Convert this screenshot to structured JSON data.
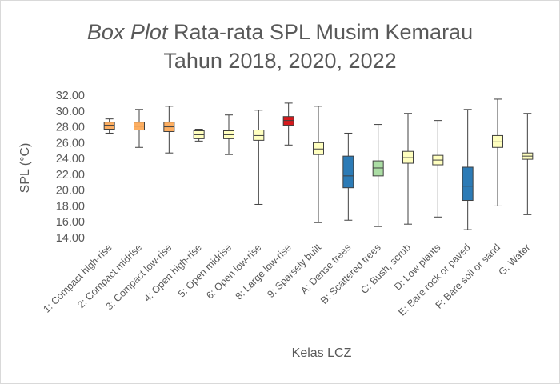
{
  "chart_data": {
    "type": "boxplot",
    "title_italic": "Box Plot",
    "title_rest": " Rata-rata SPL Musim Kemarau",
    "title_line2": "Tahun 2018, 2020, 2022",
    "xlabel": "Kelas LCZ",
    "ylabel": "SPL (°C)",
    "ylim": [
      14,
      32
    ],
    "ytick_step": 2,
    "ytick_labels": [
      "14.00",
      "16.00",
      "18.00",
      "20.00",
      "22.00",
      "24.00",
      "26.00",
      "28.00",
      "30.00",
      "32.00"
    ],
    "grid": false,
    "categories": [
      "1: Compact high-rise",
      "2: Compact midrise",
      "3: Compact low-rise",
      "4: Open high-rise",
      "5: Open midrise",
      "6: Open low-rise",
      "8: Large low-rise",
      "9: Sparsely built",
      "A: Dense trees",
      "B: Scattered trees",
      "C: Bush, scrub",
      "D: Low plants",
      "E: Bare rock or paved",
      "F: Bare soil or sand",
      "G: Water"
    ],
    "boxes": [
      {
        "min": 27.2,
        "q1": 27.7,
        "median": 28.2,
        "q3": 28.6,
        "max": 29.0,
        "color": "#fdae61"
      },
      {
        "min": 25.4,
        "q1": 27.6,
        "median": 28.1,
        "q3": 28.6,
        "max": 30.2,
        "color": "#fdae61"
      },
      {
        "min": 24.7,
        "q1": 27.4,
        "median": 28.0,
        "q3": 28.6,
        "max": 30.6,
        "color": "#fdae61"
      },
      {
        "min": 26.2,
        "q1": 26.5,
        "median": 27.0,
        "q3": 27.5,
        "max": 27.7,
        "color": "#ffffbf"
      },
      {
        "min": 24.5,
        "q1": 26.5,
        "median": 27.0,
        "q3": 27.5,
        "max": 29.5,
        "color": "#ffffbf"
      },
      {
        "min": 18.2,
        "q1": 26.3,
        "median": 26.9,
        "q3": 27.6,
        "max": 30.1,
        "color": "#ffffbf"
      },
      {
        "min": 25.7,
        "q1": 28.2,
        "median": 28.8,
        "q3": 29.3,
        "max": 31.0,
        "color": "#d7191c"
      },
      {
        "min": 15.9,
        "q1": 24.5,
        "median": 25.2,
        "q3": 26.0,
        "max": 30.6,
        "color": "#ffffbf"
      },
      {
        "min": 16.2,
        "q1": 20.3,
        "median": 21.8,
        "q3": 24.3,
        "max": 27.2,
        "color": "#2c7bb6"
      },
      {
        "min": 15.4,
        "q1": 21.8,
        "median": 22.8,
        "q3": 23.7,
        "max": 28.3,
        "color": "#abdda4"
      },
      {
        "min": 15.7,
        "q1": 23.4,
        "median": 24.1,
        "q3": 24.9,
        "max": 29.7,
        "color": "#ffffbf"
      },
      {
        "min": 16.6,
        "q1": 23.2,
        "median": 23.8,
        "q3": 24.4,
        "max": 28.8,
        "color": "#ffffbf"
      },
      {
        "min": 15.0,
        "q1": 18.7,
        "median": 20.5,
        "q3": 22.9,
        "max": 30.2,
        "color": "#2c7bb6"
      },
      {
        "min": 18.0,
        "q1": 25.4,
        "median": 26.1,
        "q3": 26.9,
        "max": 31.5,
        "color": "#ffffbf"
      },
      {
        "min": 16.9,
        "q1": 23.9,
        "median": 24.3,
        "q3": 24.7,
        "max": 29.7,
        "color": "#ffffbf"
      }
    ]
  }
}
